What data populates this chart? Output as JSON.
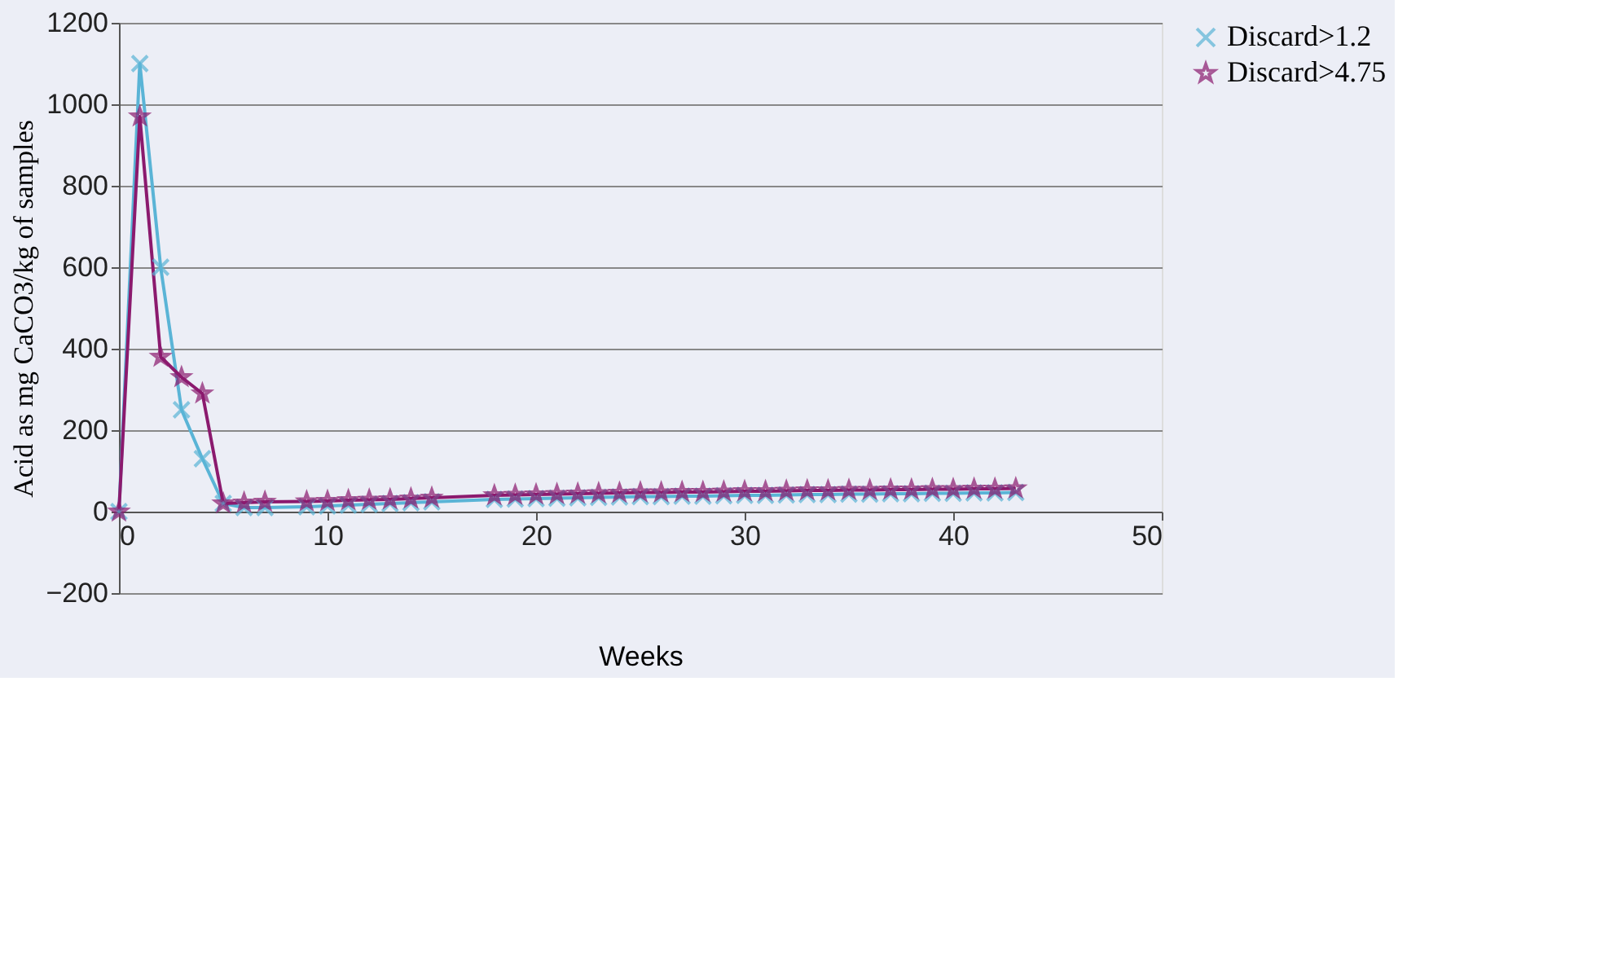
{
  "chart_data": {
    "type": "line",
    "xlabel": "Weeks",
    "ylabel": "Acid as mg CaCO3/kg of samples",
    "xlim": [
      0,
      50
    ],
    "xticks": [
      0,
      10,
      20,
      30,
      40,
      50
    ],
    "ylim": [
      -200,
      1200
    ],
    "yticks": [
      -200,
      0,
      200,
      400,
      600,
      800,
      1000,
      1200
    ],
    "grid": "y",
    "legend": "right",
    "line_style": "solid",
    "series": [
      {
        "name": "Discard>1.2",
        "color": "#5ab4d6",
        "marker": "cross",
        "x": [
          0,
          1,
          2,
          3,
          4,
          5,
          6,
          7,
          9,
          10,
          11,
          12,
          13,
          14,
          15,
          18,
          19,
          20,
          21,
          22,
          23,
          24,
          25,
          26,
          27,
          28,
          29,
          30,
          31,
          32,
          33,
          34,
          35,
          36,
          37,
          38,
          39,
          40,
          41,
          42,
          43
        ],
        "values": [
          0,
          1100,
          600,
          250,
          130,
          20,
          10,
          10,
          12,
          14,
          16,
          18,
          20,
          22,
          24,
          30,
          31,
          32,
          33,
          34,
          35,
          36,
          37,
          37,
          38,
          38,
          39,
          40,
          40,
          41,
          42,
          42,
          43,
          43,
          44,
          44,
          45,
          45,
          46,
          46,
          47
        ]
      },
      {
        "name": "Discard>4.75",
        "color": "#8b1a6e",
        "marker": "star",
        "x": [
          0,
          1,
          2,
          3,
          4,
          5,
          6,
          7,
          9,
          10,
          11,
          12,
          13,
          14,
          15,
          18,
          19,
          20,
          21,
          22,
          23,
          24,
          25,
          26,
          27,
          28,
          29,
          30,
          31,
          32,
          33,
          34,
          35,
          36,
          37,
          38,
          39,
          40,
          41,
          42,
          43
        ],
        "values": [
          0,
          970,
          380,
          330,
          290,
          20,
          22,
          24,
          25,
          26,
          28,
          29,
          30,
          32,
          34,
          40,
          41,
          42,
          43,
          44,
          45,
          46,
          47,
          47,
          48,
          48,
          49,
          50,
          50,
          51,
          52,
          52,
          53,
          53,
          54,
          54,
          55,
          55,
          56,
          56,
          57
        ]
      }
    ]
  }
}
